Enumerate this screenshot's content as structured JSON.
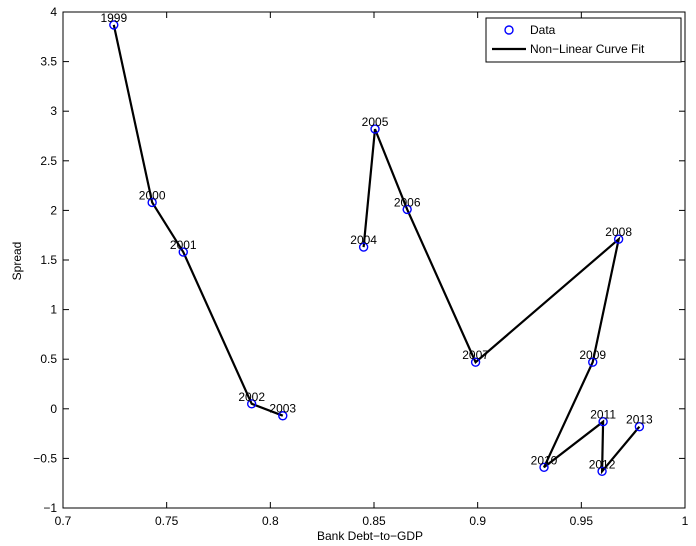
{
  "chart_data": {
    "type": "scatter",
    "title": "",
    "xlabel": "Bank Debt−to−GDP",
    "ylabel": "Spread",
    "xlim": [
      0.7,
      1.0
    ],
    "ylim": [
      -1,
      4
    ],
    "xticks": [
      0.7,
      0.75,
      0.8,
      0.85,
      0.9,
      0.95,
      1.0
    ],
    "xtick_labels": [
      "0.7",
      "0.75",
      "0.8",
      "0.85",
      "0.9",
      "0.95",
      "1"
    ],
    "yticks": [
      -1,
      -0.5,
      0,
      0.5,
      1,
      1.5,
      2,
      2.5,
      3,
      3.5,
      4
    ],
    "ytick_labels": [
      "−1",
      "−0.5",
      "0",
      "0.5",
      "1",
      "1.5",
      "2",
      "2.5",
      "3",
      "3.5",
      "4"
    ],
    "grid": false,
    "legend_position": "top-right",
    "series": [
      {
        "name": "Data",
        "style": "markers",
        "color": "#0000ff",
        "points": [
          {
            "label": "1999",
            "x": 0.7245,
            "y": 3.87
          },
          {
            "label": "2000",
            "x": 0.743,
            "y": 2.08
          },
          {
            "label": "2001",
            "x": 0.758,
            "y": 1.58
          },
          {
            "label": "2002",
            "x": 0.791,
            "y": 0.05
          },
          {
            "label": "2003",
            "x": 0.806,
            "y": -0.07
          },
          {
            "label": "2004",
            "x": 0.845,
            "y": 1.63
          },
          {
            "label": "2005",
            "x": 0.8505,
            "y": 2.82
          },
          {
            "label": "2006",
            "x": 0.866,
            "y": 2.01
          },
          {
            "label": "2007",
            "x": 0.899,
            "y": 0.47
          },
          {
            "label": "2008",
            "x": 0.968,
            "y": 1.71
          },
          {
            "label": "2009",
            "x": 0.9555,
            "y": 0.47
          },
          {
            "label": "2010",
            "x": 0.932,
            "y": -0.59
          },
          {
            "label": "2011",
            "x": 0.9605,
            "y": -0.13
          },
          {
            "label": "2012",
            "x": 0.96,
            "y": -0.63
          },
          {
            "label": "2013",
            "x": 0.978,
            "y": -0.18
          }
        ]
      },
      {
        "name": "Non−Linear Curve Fit",
        "style": "line",
        "color": "#000000",
        "points": [
          {
            "x": 0.7245,
            "y": 3.87
          },
          {
            "x": 0.743,
            "y": 2.08
          },
          {
            "x": 0.758,
            "y": 1.58
          },
          {
            "x": 0.791,
            "y": 0.05
          },
          {
            "x": 0.806,
            "y": -0.07
          },
          {
            "x": null,
            "y": null
          },
          {
            "x": 0.845,
            "y": 1.63
          },
          {
            "x": 0.8505,
            "y": 2.82
          },
          {
            "x": 0.866,
            "y": 2.01
          },
          {
            "x": 0.899,
            "y": 0.47
          },
          {
            "x": 0.968,
            "y": 1.71
          },
          {
            "x": 0.9555,
            "y": 0.47
          },
          {
            "x": 0.932,
            "y": -0.59
          },
          {
            "x": 0.9605,
            "y": -0.13
          },
          {
            "x": 0.96,
            "y": -0.63
          },
          {
            "x": 0.978,
            "y": -0.18
          }
        ]
      }
    ]
  }
}
